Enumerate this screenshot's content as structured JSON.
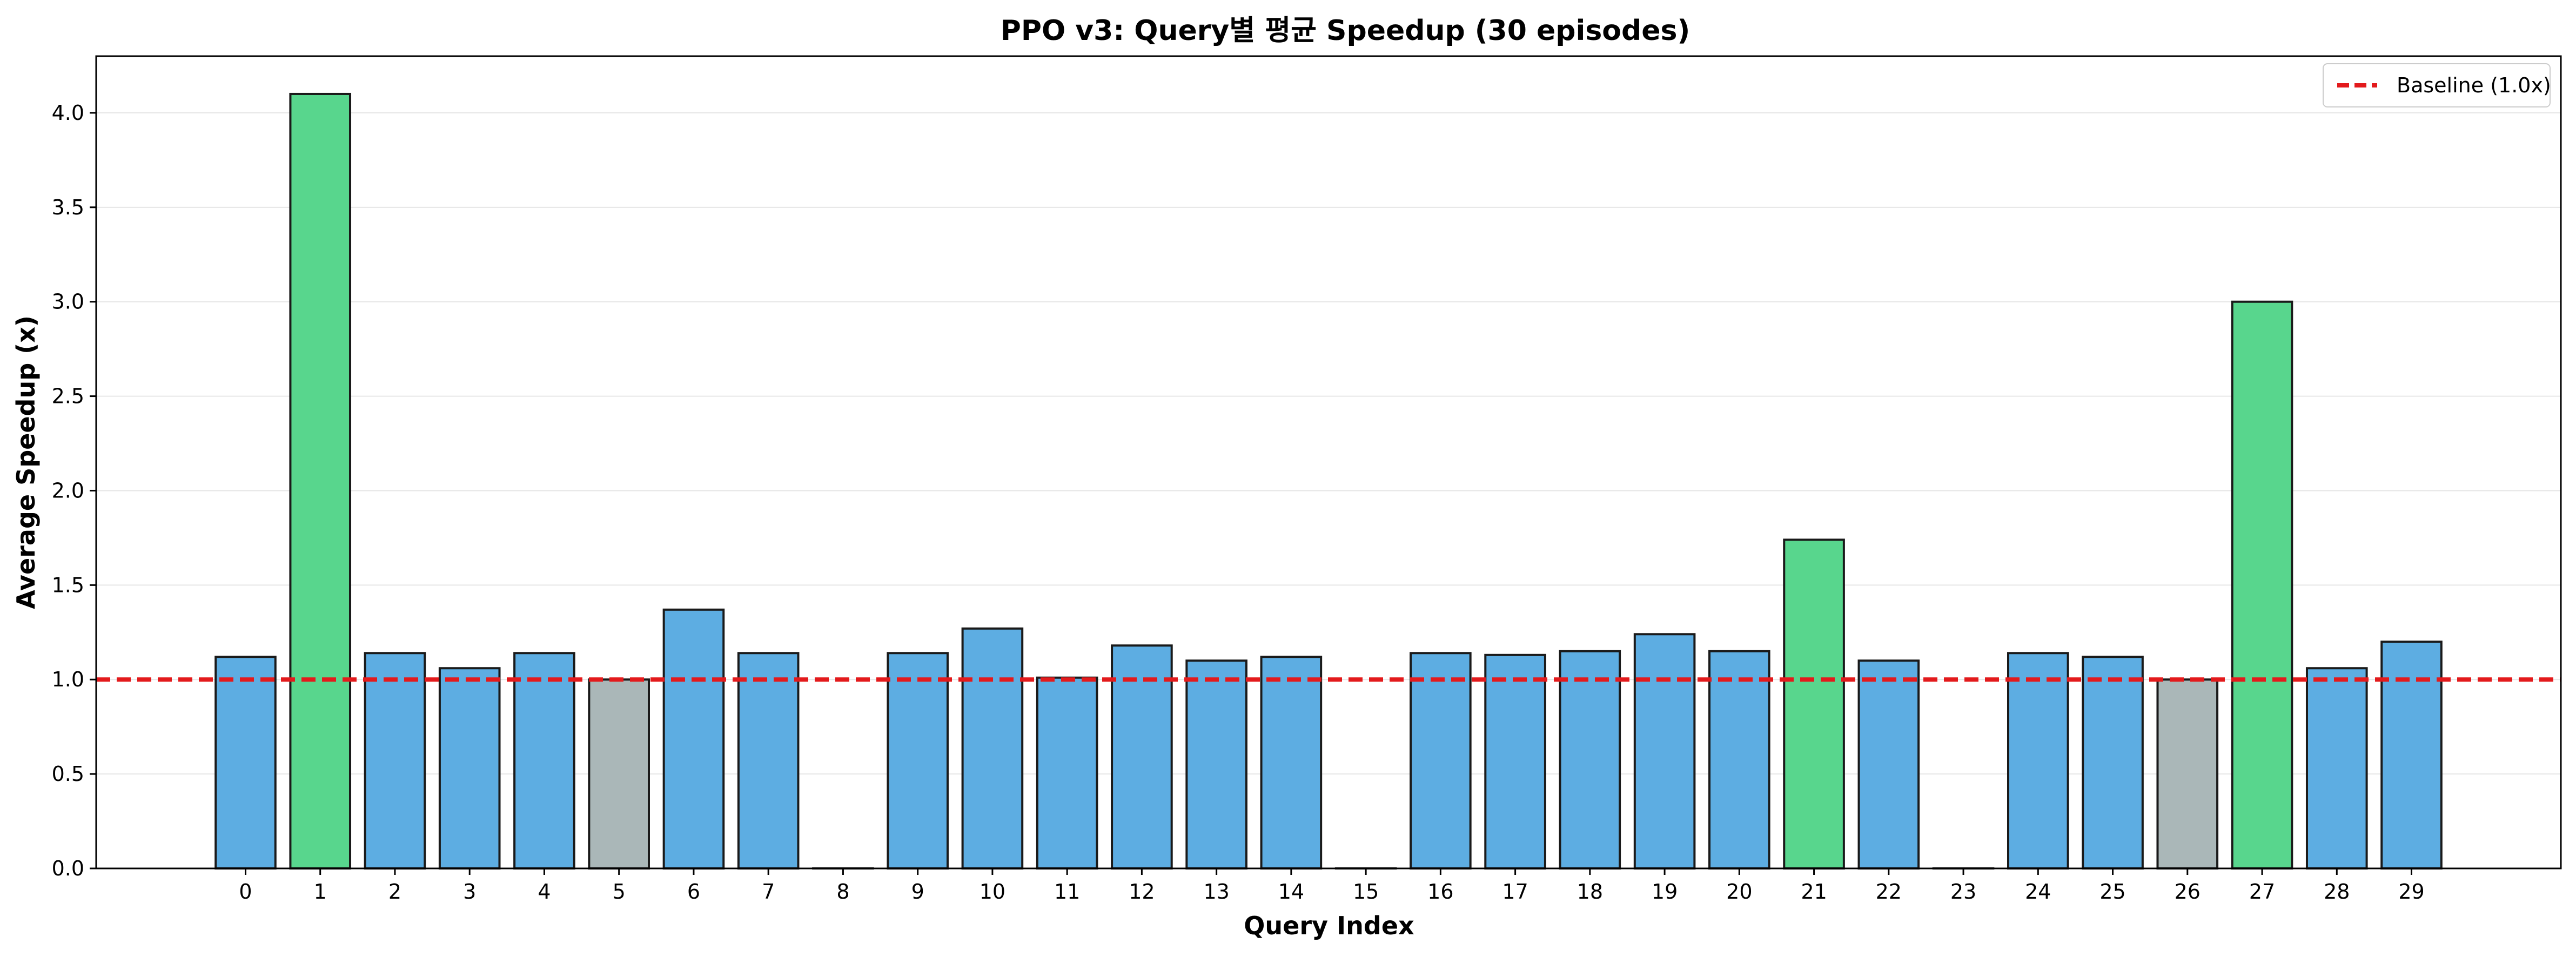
{
  "chart_data": {
    "type": "bar",
    "title": "PPO v3: Query별 평균 Speedup (30 episodes)",
    "xlabel": "Query Index",
    "ylabel": "Average Speedup (x)",
    "categories": [
      "0",
      "1",
      "2",
      "3",
      "4",
      "5",
      "6",
      "7",
      "8",
      "9",
      "10",
      "11",
      "12",
      "13",
      "14",
      "15",
      "16",
      "17",
      "18",
      "19",
      "20",
      "21",
      "22",
      "23",
      "24",
      "25",
      "26",
      "27",
      "28",
      "29"
    ],
    "values": [
      1.12,
      4.1,
      1.14,
      1.06,
      1.14,
      1.0,
      1.37,
      1.14,
      0.0,
      1.14,
      1.27,
      1.01,
      1.18,
      1.1,
      1.12,
      0.0,
      1.14,
      1.13,
      1.15,
      1.24,
      1.15,
      1.74,
      1.1,
      0.0,
      1.14,
      1.12,
      1.0,
      3.0,
      1.06,
      1.2
    ],
    "bar_colors": [
      "#5dade2",
      "#58d68d",
      "#5dade2",
      "#5dade2",
      "#5dade2",
      "#aab7b8",
      "#5dade2",
      "#5dade2",
      "#5dade2",
      "#5dade2",
      "#5dade2",
      "#5dade2",
      "#5dade2",
      "#5dade2",
      "#5dade2",
      "#5dade2",
      "#5dade2",
      "#5dade2",
      "#5dade2",
      "#5dade2",
      "#5dade2",
      "#58d68d",
      "#5dade2",
      "#5dade2",
      "#5dade2",
      "#5dade2",
      "#aab7b8",
      "#58d68d",
      "#5dade2",
      "#5dade2"
    ],
    "ylim": [
      0,
      4.3
    ],
    "yticks": [
      "0.0",
      "0.5",
      "1.0",
      "1.5",
      "2.0",
      "2.5",
      "3.0",
      "3.5",
      "4.0"
    ],
    "baseline": {
      "value": 1.0,
      "label": "Baseline (1.0x)",
      "color": "#e31a1c"
    },
    "legend_position": "top-right",
    "grid": "y"
  }
}
